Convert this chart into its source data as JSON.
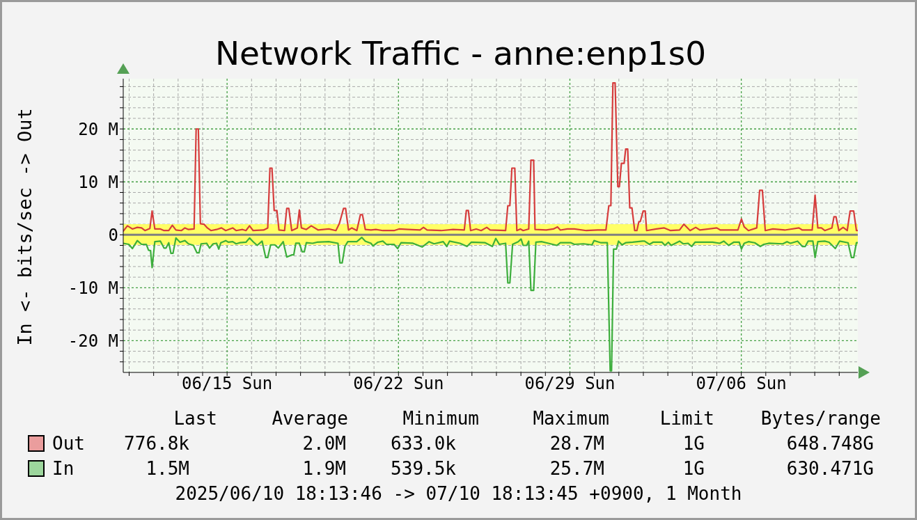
{
  "chart_data": {
    "type": "line",
    "title": "Network Traffic - anne:enp1s0",
    "ylabel": "In <- bits/sec -> Out",
    "xlim": [
      "2025-06-10T18:13",
      "2025-07-10T18:13"
    ],
    "xticks": [
      {
        "value": "2025-06-11",
        "label": null
      },
      {
        "value": "2025-06-12",
        "label": null
      },
      {
        "value": "2025-06-13",
        "label": null
      },
      {
        "value": "2025-06-14",
        "label": null
      },
      {
        "value": "2025-06-15",
        "label": "06/15 Sun"
      },
      {
        "value": "2025-06-16",
        "label": null
      },
      {
        "value": "2025-06-17",
        "label": null
      },
      {
        "value": "2025-06-18",
        "label": null
      },
      {
        "value": "2025-06-19",
        "label": null
      },
      {
        "value": "2025-06-20",
        "label": null
      },
      {
        "value": "2025-06-21",
        "label": null
      },
      {
        "value": "2025-06-22",
        "label": "06/22 Sun"
      },
      {
        "value": "2025-06-23",
        "label": null
      },
      {
        "value": "2025-06-24",
        "label": null
      },
      {
        "value": "2025-06-25",
        "label": null
      },
      {
        "value": "2025-06-26",
        "label": null
      },
      {
        "value": "2025-06-27",
        "label": null
      },
      {
        "value": "2025-06-28",
        "label": null
      },
      {
        "value": "2025-06-29",
        "label": "06/29 Sun"
      },
      {
        "value": "2025-06-30",
        "label": null
      },
      {
        "value": "2025-07-01",
        "label": null
      },
      {
        "value": "2025-07-02",
        "label": null
      },
      {
        "value": "2025-07-03",
        "label": null
      },
      {
        "value": "2025-07-04",
        "label": null
      },
      {
        "value": "2025-07-05",
        "label": null
      },
      {
        "value": "2025-07-06",
        "label": "07/06 Sun"
      },
      {
        "value": "2025-07-07",
        "label": null
      },
      {
        "value": "2025-07-08",
        "label": null
      },
      {
        "value": "2025-07-09",
        "label": null
      },
      {
        "value": "2025-07-10",
        "label": null
      }
    ],
    "ylim": [
      -26,
      29.5
    ],
    "yticks": [
      {
        "value": -24,
        "label": null
      },
      {
        "value": -22,
        "label": null
      },
      {
        "value": -20,
        "label": "-20 M"
      },
      {
        "value": -18,
        "label": null
      },
      {
        "value": -16,
        "label": null
      },
      {
        "value": -14,
        "label": null
      },
      {
        "value": -12,
        "label": null
      },
      {
        "value": -10,
        "label": "-10 M"
      },
      {
        "value": -8,
        "label": null
      },
      {
        "value": -6,
        "label": null
      },
      {
        "value": -4,
        "label": null
      },
      {
        "value": -2,
        "label": null
      },
      0,
      {
        "value": 2,
        "label": null
      },
      {
        "value": 4,
        "label": null
      },
      {
        "value": 6,
        "label": null
      },
      {
        "value": 8,
        "label": null
      },
      {
        "value": 10,
        "label": "10 M"
      },
      {
        "value": 12,
        "label": null
      },
      {
        "value": 14,
        "label": null
      },
      {
        "value": 16,
        "label": null
      },
      {
        "value": 18,
        "label": null
      },
      {
        "value": 20,
        "label": "20 M"
      },
      {
        "value": 22,
        "label": null
      },
      {
        "value": 24,
        "label": null
      },
      {
        "value": 26,
        "label": null
      },
      {
        "value": 28,
        "label": null
      }
    ],
    "grid": true,
    "legend": "bottom",
    "bands": [
      {
        "axis": "y",
        "from": -1.9,
        "to": 2.0,
        "color": "#ffff66"
      }
    ],
    "ref_lines": [
      {
        "axis": "y",
        "value": 0,
        "color": "#808080"
      }
    ],
    "series": [
      {
        "name": "Out",
        "color": "#d63c3c",
        "x": [
          "2025-06-10T18:13",
          "2025-06-10T22:20",
          "2025-06-11T03:10",
          "2025-06-11T08:00",
          "2025-06-11T12:10",
          "2025-06-11T15:30",
          "2025-06-11T20:20",
          "2025-06-11T22:30",
          "2025-06-12T01:10",
          "2025-06-12T06:40",
          "2025-06-12T10:10",
          "2025-06-12T14:50",
          "2025-06-12T18:20",
          "2025-06-12T21:50",
          "2025-06-13T03:20",
          "2025-06-13T06:40",
          "2025-06-13T10:10",
          "2025-06-13T15:40",
          "2025-06-13T17:40",
          "2025-06-13T19:50",
          "2025-06-13T21:50",
          "2025-06-14T01:20",
          "2025-06-14T04:40",
          "2025-06-14T08:10",
          "2025-06-14T13:40",
          "2025-06-14T18:30",
          "2025-06-14T22:40",
          "2025-06-15T05:30",
          "2025-06-15T08:50",
          "2025-06-15T15:10",
          "2025-06-15T18:30",
          "2025-06-15T22:00",
          "2025-06-16T01:30",
          "2025-06-16T11:50",
          "2025-06-16T15:50",
          "2025-06-16T18:00",
          "2025-06-16T20:00",
          "2025-06-16T22:10",
          "2025-06-17T00:50",
          "2025-06-17T02:50",
          "2025-06-17T08:20",
          "2025-06-17T10:30",
          "2025-06-17T12:30",
          "2025-06-17T15:20",
          "2025-06-17T20:50",
          "2025-06-17T22:50",
          "2025-06-18T00:50",
          "2025-06-18T05:40",
          "2025-06-18T10:30",
          "2025-06-18T17:20",
          "2025-06-19T03:40",
          "2025-06-19T10:40",
          "2025-06-19T14:00",
          "2025-06-19T18:10",
          "2025-06-19T20:10",
          "2025-06-19T23:00",
          "2025-06-20T02:20",
          "2025-06-20T07:10",
          "2025-06-20T10:40",
          "2025-06-20T12:40",
          "2025-06-20T15:30",
          "2025-06-20T21:00",
          "2025-06-21T01:50",
          "2025-06-21T08:40",
          "2025-06-21T19:40",
          "2025-06-22T00:30",
          "2025-06-22T09:30",
          "2025-06-22T21:10",
          "2025-06-23T00:30",
          "2025-06-23T04:00",
          "2025-06-23T17:50",
          "2025-06-24T05:30",
          "2025-06-24T16:30",
          "2025-06-24T18:30",
          "2025-06-24T20:30",
          "2025-06-24T22:40",
          "2025-06-25T04:10",
          "2025-06-25T09:00",
          "2025-06-25T14:30",
          "2025-06-25T17:50",
          "2025-06-26T09:00",
          "2025-06-26T11:10",
          "2025-06-26T13:10",
          "2025-06-26T15:10",
          "2025-06-26T18:00",
          "2025-06-26T20:00",
          "2025-06-26T23:30",
          "2025-06-27T02:10",
          "2025-06-27T07:40",
          "2025-06-27T09:50",
          "2025-06-27T12:30",
          "2025-06-27T13:50",
          "2025-06-28T00:50",
          "2025-06-28T07:50",
          "2025-06-28T11:50",
          "2025-06-28T14:40",
          "2025-06-28T21:30",
          "2025-06-29T04:20",
          "2025-06-29T16:10",
          "2025-06-30T03:10",
          "2025-06-30T11:20",
          "2025-06-30T14:10",
          "2025-06-30T16:10",
          "2025-06-30T18:10",
          "2025-06-30T20:20",
          "2025-06-30T23:00",
          "2025-07-01T00:30",
          "2025-07-01T02:30",
          "2025-07-01T05:10",
          "2025-07-01T06:40",
          "2025-07-01T08:40",
          "2025-07-01T10:40",
          "2025-07-01T12:50",
          "2025-07-01T15:30",
          "2025-07-01T17:40",
          "2025-07-01T19:40",
          "2025-07-01T21:00",
          "2025-07-01T23:50",
          "2025-07-02T01:50",
          "2025-07-02T03:10",
          "2025-07-02T12:50",
          "2025-07-02T20:30",
          "2025-07-03T02:40",
          "2025-07-03T11:30",
          "2025-07-03T15:40",
          "2025-07-03T21:50",
          "2025-07-04T03:20",
          "2025-07-04T07:30",
          "2025-07-05T00:00",
          "2025-07-05T03:30",
          "2025-07-05T20:40",
          "2025-07-06T00:10",
          "2025-07-06T02:50",
          "2025-07-06T07:00",
          "2025-07-06T15:10",
          "2025-07-06T18:00",
          "2025-07-06T20:40",
          "2025-07-06T23:30",
          "2025-07-07T07:00",
          "2025-07-07T18:40",
          "2025-07-08T08:30",
          "2025-07-08T11:50",
          "2025-07-08T21:30",
          "2025-07-09T00:20",
          "2025-07-09T03:00",
          "2025-07-09T06:30",
          "2025-07-09T09:50",
          "2025-07-09T16:50",
          "2025-07-09T18:50",
          "2025-07-09T20:50",
          "2025-07-09T23:40",
          "2025-07-10T03:50",
          "2025-07-10T07:50",
          "2025-07-10T10:40",
          "2025-07-10T14:10",
          "2025-07-10T16:50",
          "2025-07-10T18:13"
        ],
        "values": [
          0.7,
          1.7,
          1.1,
          1.4,
          1.3,
          0.8,
          1.2,
          4.5,
          1.1,
          1.1,
          0.8,
          0.8,
          1.8,
          0.9,
          0.8,
          1.3,
          1.0,
          1.1,
          20.0,
          20.0,
          2.1,
          2.0,
          1.3,
          0.8,
          1.0,
          1.3,
          0.8,
          1.3,
          0.8,
          1.0,
          0.8,
          1.7,
          0.8,
          0.9,
          1.3,
          12.6,
          12.6,
          4.6,
          4.6,
          0.9,
          0.8,
          5.0,
          5.0,
          0.8,
          1.3,
          4.7,
          1.3,
          1.0,
          1.7,
          0.9,
          1.1,
          0.8,
          2.1,
          5.0,
          5.0,
          0.9,
          1.3,
          0.8,
          3.8,
          3.8,
          1.0,
          0.9,
          1.0,
          0.8,
          0.8,
          1.1,
          1.0,
          0.9,
          1.4,
          0.9,
          0.8,
          1.0,
          0.9,
          4.6,
          4.6,
          0.8,
          1.1,
          0.8,
          1.4,
          0.9,
          0.8,
          5.5,
          5.5,
          12.6,
          12.6,
          0.8,
          1.1,
          0.8,
          1.1,
          14.1,
          14.1,
          1.0,
          0.9,
          1.1,
          1.5,
          0.9,
          1.1,
          1.1,
          0.8,
          0.9,
          0.9,
          5.5,
          5.5,
          28.7,
          28.7,
          9.1,
          9.1,
          13.5,
          13.5,
          16.2,
          16.2,
          5.1,
          5.1,
          0.8,
          0.8,
          2.5,
          2.5,
          4.5,
          4.5,
          0.8,
          1.1,
          1.3,
          0.8,
          0.9,
          2.0,
          0.8,
          1.4,
          0.9,
          1.3,
          0.9,
          0.9,
          3.0,
          1.5,
          0.8,
          1.3,
          8.4,
          8.4,
          0.8,
          1.1,
          0.9,
          1.3,
          0.9,
          0.9,
          7.5,
          1.3,
          1.3,
          0.8,
          1.3,
          3.4,
          3.4,
          0.8,
          1.4,
          0.8,
          4.5,
          4.5,
          0.8,
          0.8
        ]
      },
      {
        "name": "In",
        "color": "#3cae3c",
        "x": [
          "2025-06-10T18:13",
          "2025-06-10T23:40",
          "2025-06-11T03:10",
          "2025-06-11T08:00",
          "2025-06-11T12:10",
          "2025-06-11T16:50",
          "2025-06-11T19:00",
          "2025-06-11T21:00",
          "2025-06-11T22:30",
          "2025-06-12T01:10",
          "2025-06-12T06:40",
          "2025-06-12T10:10",
          "2025-06-12T12:10",
          "2025-06-12T14:50",
          "2025-06-12T17:00",
          "2025-06-12T19:00",
          "2025-06-12T21:50",
          "2025-06-13T01:50",
          "2025-06-13T06:40",
          "2025-06-13T10:10",
          "2025-06-13T15:00",
          "2025-06-13T18:30",
          "2025-06-13T20:30",
          "2025-06-13T22:30",
          "2025-06-14T04:00",
          "2025-06-14T06:50",
          "2025-06-14T10:20",
          "2025-06-14T13:40",
          "2025-06-14T15:50",
          "2025-06-14T17:50",
          "2025-06-14T22:40",
          "2025-06-15T01:20",
          "2025-06-15T05:30",
          "2025-06-15T08:50",
          "2025-06-15T12:20",
          "2025-06-15T18:30",
          "2025-06-15T22:00",
          "2025-06-16T01:30",
          "2025-06-16T05:30",
          "2025-06-16T10:20",
          "2025-06-16T13:50",
          "2025-06-16T15:50",
          "2025-06-16T18:40",
          "2025-06-16T22:50",
          "2025-06-17T02:10",
          "2025-06-17T07:00",
          "2025-06-17T10:30",
          "2025-06-17T15:20",
          "2025-06-17T17:20",
          "2025-06-17T19:20",
          "2025-06-17T22:50",
          "2025-06-18T01:30",
          "2025-06-18T03:40",
          "2025-06-18T05:40",
          "2025-06-18T11:50",
          "2025-06-18T16:00",
          "2025-06-19T03:40",
          "2025-06-19T12:40",
          "2025-06-19T14:40",
          "2025-06-19T16:50",
          "2025-06-19T19:30",
          "2025-06-19T22:20",
          "2025-06-20T07:10",
          "2025-06-20T12:00",
          "2025-06-20T15:30",
          "2025-06-20T21:00",
          "2025-06-20T23:00",
          "2025-06-21T03:50",
          "2025-06-21T08:40",
          "2025-06-21T12:10",
          "2025-06-21T19:40",
          "2025-06-21T23:10",
          "2025-06-22T02:30",
          "2025-06-22T14:10",
          "2025-06-22T23:10",
          "2025-06-23T06:00",
          "2025-06-23T10:50",
          "2025-06-23T19:50",
          "2025-06-23T23:20",
          "2025-06-24T02:00",
          "2025-06-24T12:20",
          "2025-06-24T19:10",
          "2025-06-24T23:20",
          "2025-06-25T13:00",
          "2025-06-25T20:00",
          "2025-06-25T23:20",
          "2025-06-26T02:50",
          "2025-06-26T09:00",
          "2025-06-26T11:10",
          "2025-06-26T13:10",
          "2025-06-26T15:50",
          "2025-06-26T21:20",
          "2025-06-27T00:10",
          "2025-06-27T02:10",
          "2025-06-27T05:40",
          "2025-06-27T07:40",
          "2025-06-27T09:50",
          "2025-06-27T12:30",
          "2025-06-27T14:40",
          "2025-06-27T20:10",
          "2025-06-28T03:00",
          "2025-06-28T11:10",
          "2025-06-28T14:40",
          "2025-06-29T01:00",
          "2025-06-29T04:20",
          "2025-06-29T13:20",
          "2025-06-29T21:40",
          "2025-06-29T23:40",
          "2025-06-30T03:10",
          "2025-06-30T06:30",
          "2025-06-30T12:40",
          "2025-06-30T15:30",
          "2025-06-30T16:50",
          "2025-06-30T18:50",
          "2025-06-30T21:40",
          "2025-06-30T23:40",
          "2025-07-01T03:10",
          "2025-07-01T06:40",
          "2025-07-01T13:30",
          "2025-07-01T23:10",
          "2025-07-02T01:10",
          "2025-07-02T06:00",
          "2025-07-02T09:30",
          "2025-07-02T18:20",
          "2025-07-02T21:10",
          "2025-07-03T00:30",
          "2025-07-03T03:20",
          "2025-07-03T11:30",
          "2025-07-03T15:00",
          "2025-07-03T19:50",
          "2025-07-03T23:20",
          "2025-07-04T02:40",
          "2025-07-04T19:50",
          "2025-07-05T02:50",
          "2025-07-05T06:50",
          "2025-07-05T11:40",
          "2025-07-05T16:30",
          "2025-07-05T22:00",
          "2025-07-06T00:10",
          "2025-07-06T02:50",
          "2025-07-06T07:00",
          "2025-07-06T13:10",
          "2025-07-06T18:40",
          "2025-07-06T22:10",
          "2025-07-07T02:50",
          "2025-07-07T16:40",
          "2025-07-07T20:50",
          "2025-07-08T00:10",
          "2025-07-08T07:10",
          "2025-07-08T11:50",
          "2025-07-08T14:40",
          "2025-07-08T17:30",
          "2025-07-08T22:10",
          "2025-07-09T00:20",
          "2025-07-09T03:00",
          "2025-07-09T09:50",
          "2025-07-09T14:00",
          "2025-07-09T20:10",
          "2025-07-10T00:20",
          "2025-07-10T08:40",
          "2025-07-10T12:00",
          "2025-07-10T14:10",
          "2025-07-10T16:50",
          "2025-07-10T18:13"
        ],
        "values": [
          -1.6,
          -1.8,
          -2.6,
          -1.1,
          -1.8,
          -1.8,
          -2.9,
          -3.0,
          -6.2,
          -1.3,
          -1.2,
          -2.5,
          -2.5,
          -1.5,
          -3.5,
          -3.5,
          -0.6,
          -1.4,
          -1.1,
          -1.7,
          -2.0,
          -3.4,
          -3.4,
          -1.7,
          -1.6,
          -2.5,
          -1.7,
          -1.6,
          -2.7,
          -1.5,
          -1.1,
          -1.4,
          -1.3,
          -1.7,
          -1.5,
          -1.4,
          -0.6,
          -1.3,
          -2.0,
          -1.2,
          -4.3,
          -4.3,
          -1.9,
          -1.9,
          -2.5,
          -1.3,
          -4.2,
          -3.8,
          -3.8,
          -1.6,
          -1.6,
          -3.2,
          -3.2,
          -1.5,
          -1.6,
          -1.4,
          -1.3,
          -1.6,
          -5.3,
          -5.3,
          -2.2,
          -1.3,
          -1.3,
          -0.5,
          -1.2,
          -1.6,
          -2.1,
          -1.4,
          -1.2,
          -1.8,
          -1.8,
          -2.6,
          -1.5,
          -1.6,
          -2.3,
          -1.3,
          -1.7,
          -1.3,
          -2.2,
          -1.2,
          -1.6,
          -2.2,
          -1.4,
          -1.5,
          -2.2,
          -0.7,
          -1.8,
          -1.6,
          -9.1,
          -9.1,
          -1.8,
          -1.3,
          -0.8,
          -2.0,
          -2.0,
          -1.2,
          -10.5,
          -10.5,
          -1.4,
          -1.3,
          -1.6,
          -2.0,
          -1.5,
          -1.5,
          -1.8,
          -1.7,
          -1.9,
          -1.1,
          -1.3,
          -1.5,
          -1.5,
          -25.7,
          -25.7,
          -2.7,
          -2.7,
          -1.2,
          -1.9,
          -1.5,
          -1.4,
          -1.2,
          -1.2,
          -1.8,
          -1.4,
          -1.4,
          -2.0,
          -1.4,
          -2.0,
          -1.2,
          -1.7,
          -1.6,
          -2.2,
          -1.4,
          -1.4,
          -1.6,
          -1.2,
          -2.0,
          -1.4,
          -1.4,
          -2.7,
          -1.6,
          -1.3,
          -1.5,
          -2.2,
          -1.8,
          -1.6,
          -1.7,
          -1.3,
          -1.6,
          -1.2,
          -2.2,
          -2.2,
          -1.2,
          -1.2,
          -4.3,
          -1.3,
          -1.2,
          -1.4,
          -2.6,
          -1.2,
          -1.5,
          -4.3,
          -4.3,
          -1.5,
          -1.5
        ]
      }
    ],
    "annotations": [
      "Last",
      "Average",
      "Minimum",
      "Maximum",
      "Limit",
      "Bytes/range",
      "776.8k",
      "2.0M",
      "633.0k",
      "28.7M",
      "1G",
      "648.748G",
      "1.5M",
      "1.9M",
      "539.5k",
      "25.7M",
      "1G",
      "630.471G",
      "2025/06/10 18:13:46 -> 07/10 18:13:45 +0900, 1 Month"
    ]
  }
}
